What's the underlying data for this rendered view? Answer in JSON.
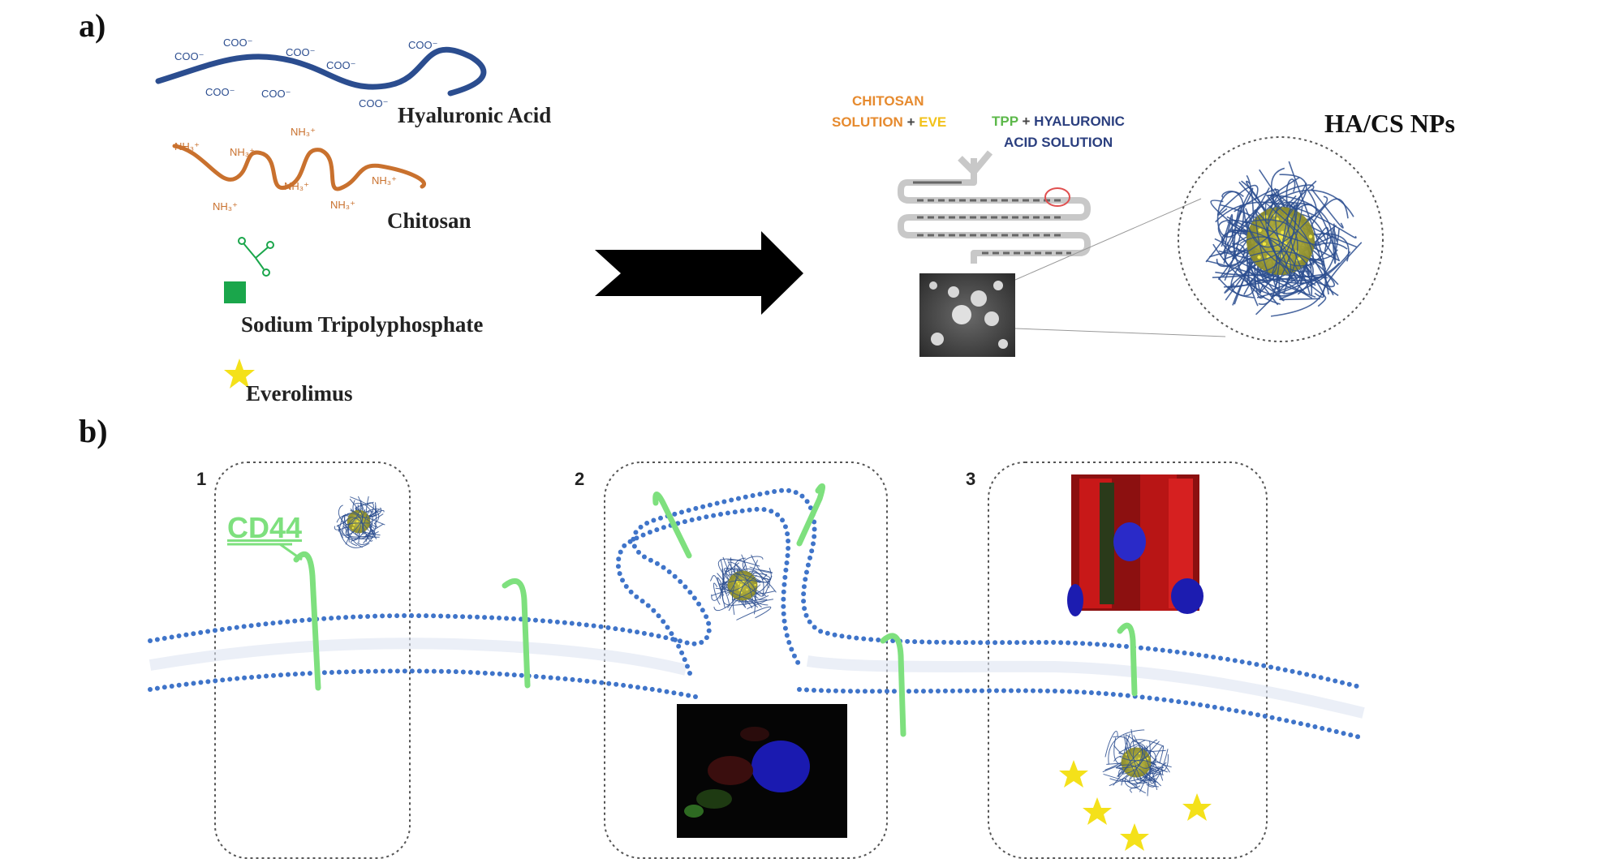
{
  "panels": {
    "a_label": "a)",
    "b_label": "b)"
  },
  "materials": [
    {
      "key": "ha",
      "label": "Hyaluronic Acid",
      "group": "COO⁻",
      "color": "#2b4d8f"
    },
    {
      "key": "cs",
      "label": "Chitosan",
      "group": "NH₃⁺",
      "color": "#c9712e"
    },
    {
      "key": "tpp",
      "label": "Sodium Tripolyphosphate",
      "color": "#1aa64b"
    },
    {
      "key": "eve",
      "label": "Everolimus",
      "color": "#f4e11a"
    }
  ],
  "microfluidic": {
    "inlet1_line1": "CHITOSAN",
    "inlet1_line2": "SOLUTION",
    "inlet1_plus": "+",
    "inlet1_drug": "EVE",
    "inlet2_tpp": "TPP",
    "inlet2_plus": "+",
    "inlet2_line1": "HYALURONIC",
    "inlet2_line2": "ACID SOLUTION"
  },
  "nanoparticle_title": "HA/CS NPs",
  "receptor_label": "CD44",
  "steps": [
    "1",
    "2",
    "3"
  ],
  "colors": {
    "arrow": "#000000",
    "membrane_dot": "#3f74c9",
    "receptor": "#7ee07e",
    "chitosan_text": "#e68a2e",
    "eve_text": "#f2c21a",
    "tpp_text": "#5cb84a",
    "ha_text": "#2b3f7f"
  }
}
